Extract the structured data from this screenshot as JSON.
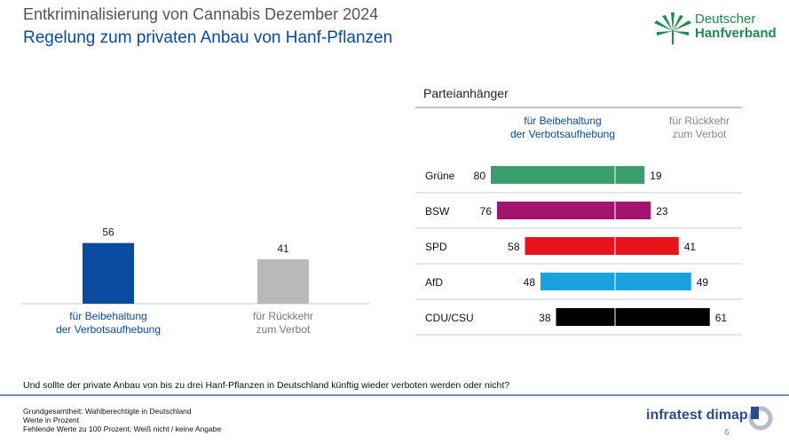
{
  "header": {
    "title": "Entkriminalisierung von Cannabis Dezember 2024",
    "subtitle": "Regelung zum privaten Anbau von Hanf-Pflanzen"
  },
  "logo": {
    "line1": "Deutscher",
    "line2": "Hanfverband",
    "icon": "hemp-leaf-icon",
    "color": "#1f8a4c"
  },
  "question": "Und sollte der private Anbau von bis zu drei Hanf-Pflanzen in Deutschland künftig wieder verboten werden oder nicht?",
  "footnotes": [
    "Grundgesamtheit: Wahlberechtigte in Deutschland",
    "Werte in Prozent",
    "Fehlende Werte zu 100 Prozent: Weiß nicht / keine Angabe"
  ],
  "brand": {
    "name": "infratest dimap",
    "icon": "infratest-logo-icon"
  },
  "page_number": "6",
  "chart_data": [
    {
      "type": "bar",
      "categories": [
        "für Beibehaltung der Verbotsaufhebung",
        "für Rückkehr zum Verbot"
      ],
      "values": [
        56,
        41
      ],
      "colors": [
        "#0a4a9f",
        "#b9b9b9"
      ],
      "label_colors": [
        "#0a4a9f",
        "#777777"
      ]
    },
    {
      "type": "bar",
      "orientation": "diverging-horizontal",
      "title": "Parteianhänger",
      "series_labels": [
        "für Beibehaltung der Verbotsaufhebung",
        "für Rückkehr zum Verbot"
      ],
      "series_label_colors": [
        "#0a4a9f",
        "#888888"
      ],
      "categories": [
        "Grüne",
        "BSW",
        "SPD",
        "AfD",
        "CDU/CSU"
      ],
      "series": [
        {
          "values": [
            80,
            76,
            58,
            48,
            38
          ]
        },
        {
          "values": [
            19,
            23,
            41,
            49,
            61
          ]
        }
      ],
      "colors": [
        "#3a9e6a",
        "#a3146f",
        "#e8131b",
        "#1aa1e0",
        "#000000"
      ]
    }
  ]
}
